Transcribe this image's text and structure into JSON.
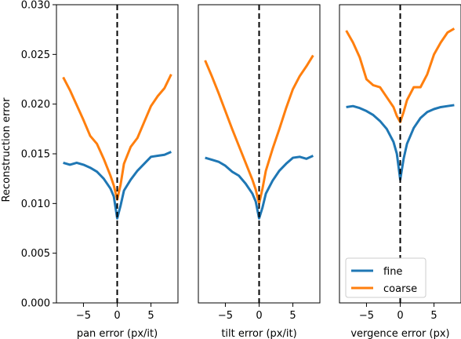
{
  "chart_data": {
    "type": "line",
    "ylabel": "Reconstruction error",
    "ylim": [
      0,
      0.03
    ],
    "yticks": [
      "0.000",
      "0.005",
      "0.010",
      "0.015",
      "0.020",
      "0.025",
      "0.030"
    ],
    "xlim": [
      -9,
      9
    ],
    "xticks": [
      "−5",
      "0",
      "5"
    ],
    "colors": {
      "fine": "#1f77b4",
      "coarse": "#ff7f0e",
      "zero_line": "#000000"
    },
    "legend": {
      "placement": "lower-right",
      "panel": 2,
      "entries": [
        "fine",
        "coarse"
      ]
    },
    "zero_line": {
      "x": 0,
      "style": "dashed"
    },
    "panels": [
      {
        "xlabel": "pan error (px/it)",
        "series": [
          {
            "name": "fine",
            "x": [
              -8,
              -7,
              -6,
              -5,
              -4,
              -3,
              -2,
              -1,
              -0.5,
              0,
              0.5,
              1,
              2,
              3,
              4,
              5,
              6,
              7,
              8
            ],
            "y": [
              0.0141,
              0.0139,
              0.0141,
              0.0139,
              0.0136,
              0.0132,
              0.0125,
              0.0115,
              0.0107,
              0.0085,
              0.0098,
              0.0113,
              0.0124,
              0.0133,
              0.014,
              0.0147,
              0.0148,
              0.0149,
              0.0152
            ]
          },
          {
            "name": "coarse",
            "x": [
              -8,
              -7,
              -6,
              -5,
              -4,
              -3,
              -2,
              -1,
              -0.5,
              0,
              0.5,
              1,
              2,
              3,
              4,
              5,
              6,
              7,
              8
            ],
            "y": [
              0.0227,
              0.0214,
              0.0199,
              0.0184,
              0.0168,
              0.016,
              0.0145,
              0.0128,
              0.0118,
              0.0104,
              0.0119,
              0.014,
              0.0157,
              0.0166,
              0.0182,
              0.0198,
              0.0208,
              0.0216,
              0.023
            ]
          }
        ]
      },
      {
        "xlabel": "tilt error (px/it)",
        "series": [
          {
            "name": "fine",
            "x": [
              -8,
              -7,
              -6,
              -5,
              -4,
              -3,
              -2,
              -1,
              -0.5,
              0,
              0.5,
              1,
              2,
              3,
              4,
              5,
              6,
              7,
              8
            ],
            "y": [
              0.0146,
              0.0144,
              0.0142,
              0.0138,
              0.0132,
              0.0128,
              0.012,
              0.011,
              0.0102,
              0.0085,
              0.0096,
              0.011,
              0.0123,
              0.0133,
              0.014,
              0.0146,
              0.0147,
              0.0145,
              0.0148
            ]
          },
          {
            "name": "coarse",
            "x": [
              -8,
              -7,
              -6,
              -5,
              -4,
              -3,
              -2,
              -1,
              -0.5,
              0,
              0.5,
              1,
              2,
              3,
              4,
              5,
              6,
              7,
              8
            ],
            "y": [
              0.0244,
              0.0228,
              0.0211,
              0.0193,
              0.0175,
              0.0158,
              0.0141,
              0.0124,
              0.0114,
              0.01,
              0.0115,
              0.0133,
              0.0155,
              0.0175,
              0.0196,
              0.0215,
              0.0228,
              0.0238,
              0.0249
            ]
          }
        ]
      },
      {
        "xlabel": "vergence error (px)",
        "series": [
          {
            "name": "fine",
            "x": [
              -8,
              -7,
              -6,
              -5,
              -4,
              -3,
              -2,
              -1,
              -0.5,
              0,
              0.5,
              1,
              2,
              3,
              4,
              5,
              6,
              7,
              8
            ],
            "y": [
              0.0197,
              0.0198,
              0.0196,
              0.0193,
              0.0189,
              0.0183,
              0.0175,
              0.0162,
              0.015,
              0.0124,
              0.0145,
              0.016,
              0.0176,
              0.0186,
              0.0192,
              0.0195,
              0.0197,
              0.0198,
              0.0199
            ]
          },
          {
            "name": "coarse",
            "x": [
              -8,
              -7,
              -6,
              -5,
              -4,
              -3,
              -2,
              -1,
              -0.5,
              0,
              0.5,
              1,
              2,
              3,
              4,
              5,
              6,
              7,
              8
            ],
            "y": [
              0.0274,
              0.0262,
              0.0247,
              0.0225,
              0.0219,
              0.0217,
              0.0207,
              0.0197,
              0.0188,
              0.0182,
              0.0192,
              0.0204,
              0.0217,
              0.0217,
              0.023,
              0.025,
              0.0262,
              0.0272,
              0.0276
            ]
          }
        ]
      }
    ]
  }
}
